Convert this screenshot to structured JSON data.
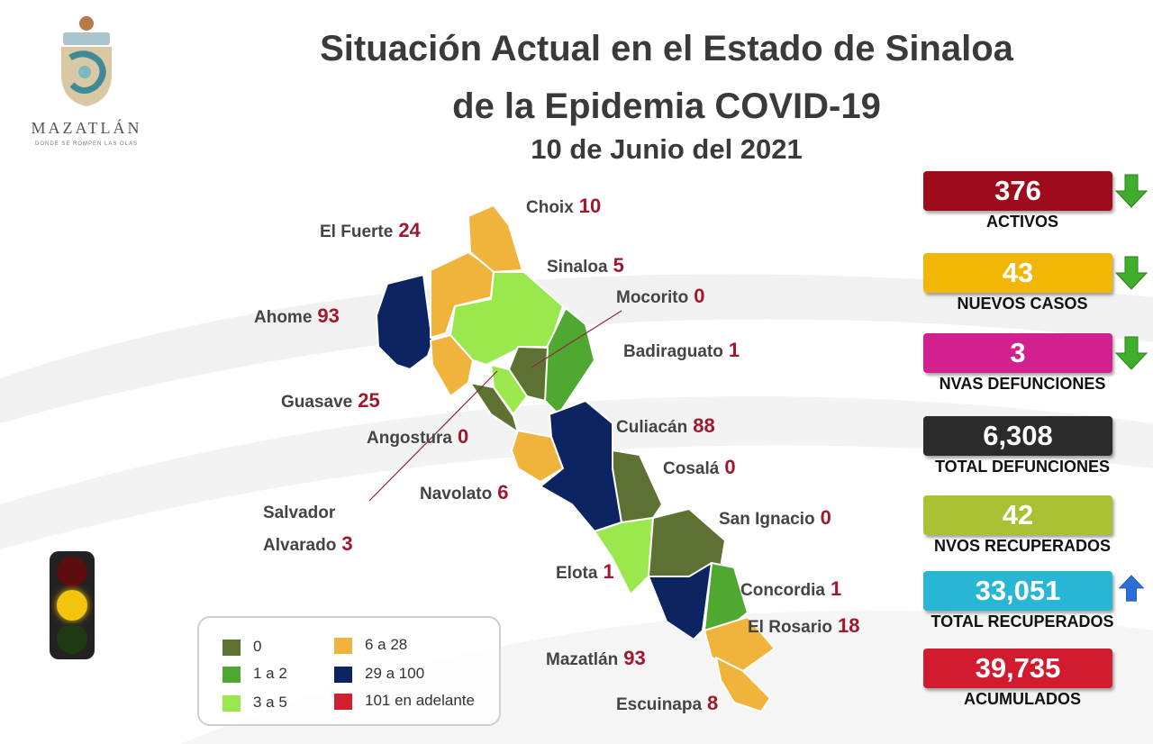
{
  "logo": {
    "name": "MAZATLÁN",
    "tagline": "DONDE SE ROMPEN LAS OLAS"
  },
  "header": {
    "title_line1": "Situación Actual en el Estado de Sinaloa",
    "title_line2": "de la Epidemia COVID-19",
    "date": "10 de Junio del 2021"
  },
  "stats": [
    {
      "value": "376",
      "label": "ACTIVOS",
      "color": "#9e0b1a",
      "trend": "down"
    },
    {
      "value": "43",
      "label": "NUEVOS CASOS",
      "color": "#f2b705",
      "trend": "down"
    },
    {
      "value": "3",
      "label": "NVAS DEFUNCIONES",
      "color": "#d2208f",
      "trend": "down"
    },
    {
      "value": "6,308",
      "label": "TOTAL DEFUNCIONES",
      "color": "#2b2b2b",
      "trend": ""
    },
    {
      "value": "42",
      "label": "NVOS RECUPERADOS",
      "color": "#a9c132",
      "trend": ""
    },
    {
      "value": "33,051",
      "label": "TOTAL RECUPERADOS",
      "color": "#27b7d4",
      "trend": "up"
    },
    {
      "value": "39,735",
      "label": "ACUMULADOS",
      "color": "#d31b2f",
      "trend": ""
    }
  ],
  "legend": [
    {
      "label": "0",
      "color": "#5c7132"
    },
    {
      "label": "1 a 2",
      "color": "#4fa830"
    },
    {
      "label": "3 a 5",
      "color": "#9be84e"
    },
    {
      "label": "6 a 28",
      "color": "#f0b43c"
    },
    {
      "label": "29 a 100",
      "color": "#0c2461"
    },
    {
      "label": "101 en adelante",
      "color": "#d11f2f"
    }
  ],
  "chart_data": {
    "type": "map",
    "title": "Situación Actual en el Estado de Sinaloa de la Epidemia COVID-19",
    "date": "10 de Junio del 2021",
    "municipalities": [
      {
        "name": "Choix",
        "value": "10"
      },
      {
        "name": "El Fuerte",
        "value": "24"
      },
      {
        "name": "Sinaloa",
        "value": "5"
      },
      {
        "name": "Mocorito",
        "value": "0"
      },
      {
        "name": "Ahome",
        "value": "93"
      },
      {
        "name": "Badiraguato",
        "value": "1"
      },
      {
        "name": "Guasave",
        "value": "25"
      },
      {
        "name": "Culiacán",
        "value": "88"
      },
      {
        "name": "Angostura",
        "value": "0"
      },
      {
        "name": "Cosalá",
        "value": "0"
      },
      {
        "name": "Navolato",
        "value": "6"
      },
      {
        "name": "Salvador Alvarado",
        "line1": "Salvador",
        "line2": "Alvarado",
        "value": "3"
      },
      {
        "name": "San Ignacio",
        "value": "0"
      },
      {
        "name": "Elota",
        "value": "1"
      },
      {
        "name": "Concordia",
        "value": "1"
      },
      {
        "name": "El Rosario",
        "value": "18"
      },
      {
        "name": "Mazatlán",
        "value": "93"
      },
      {
        "name": "Escuinapa",
        "value": "8"
      }
    ]
  }
}
